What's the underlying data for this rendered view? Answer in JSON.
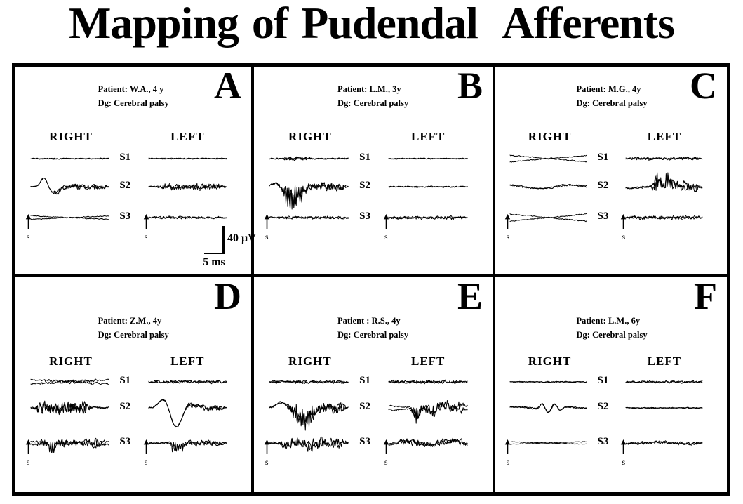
{
  "title": "Mapping of Pudendal  Afferents",
  "columns": {
    "right": "RIGHT",
    "left": "LEFT"
  },
  "segments": [
    "S1",
    "S2",
    "S3"
  ],
  "stim": {
    "label": "s"
  },
  "scale_bar": {
    "voltage": "40 µV",
    "time": "5 ms"
  },
  "panels": [
    {
      "id": "A",
      "patient": "Patient: W.A., 4 y",
      "diagnosis": "Dg: Cerebral palsy",
      "traces": {
        "right": [
          {
            "base": 0.7,
            "seed": 1
          },
          {
            "base": 0.7,
            "seed": 2,
            "events": [
              {
                "pos": 0.17,
                "w": 0.06,
                "amp": 13
              },
              {
                "pos": 0.3,
                "w": 0.09,
                "amp": -9
              }
            ],
            "noise": {
              "amp": 3.5,
              "from": 0.25,
              "to": 1
            }
          },
          {
            "base": 0.5,
            "seed": 3,
            "sep": 2.5
          }
        ],
        "left": [
          {
            "base": 0.7,
            "seed": 4
          },
          {
            "base": 0.8,
            "seed": 5,
            "noise": {
              "amp": 4.5,
              "from": 0.12,
              "to": 1
            }
          },
          {
            "base": 0.8,
            "seed": 6,
            "noise": {
              "amp": 1.2,
              "from": 0,
              "to": 1
            }
          }
        ]
      }
    },
    {
      "id": "B",
      "patient": "Patient: L.M., 3y",
      "diagnosis": "Dg: Cerebral palsy",
      "traces": {
        "right": [
          {
            "base": 0.8,
            "seed": 7,
            "noise": {
              "amp": 2.2,
              "from": 0.15,
              "to": 0.55
            }
          },
          {
            "base": 0.9,
            "seed": 8,
            "events": [
              {
                "pos": 0.08,
                "w": 0.07,
                "amp": 6
              },
              {
                "pos": 0.3,
                "w": 0.13,
                "amp": -27,
                "spiky": true
              }
            ],
            "noise": {
              "amp": 5.5,
              "from": 0.15,
              "to": 1
            }
          },
          {
            "base": 0.9,
            "seed": 9,
            "noise": {
              "amp": 1.4,
              "from": 0,
              "to": 1
            }
          }
        ],
        "left": [
          {
            "base": 0.6,
            "seed": 10
          },
          {
            "base": 0.7,
            "seed": 11
          },
          {
            "base": 0.9,
            "seed": 12,
            "noise": {
              "amp": 1.8,
              "from": 0,
              "to": 1
            }
          }
        ]
      }
    },
    {
      "id": "C",
      "patient": "Patient: M.G.,  4y",
      "diagnosis": "Dg: Cerebral palsy",
      "traces": {
        "right": [
          {
            "base": 0.6,
            "seed": 13,
            "sep": 4.5
          },
          {
            "base": 0.8,
            "seed": 14,
            "slow": 2.5,
            "slowf": 1.2
          },
          {
            "base": 0.6,
            "seed": 15,
            "sep": 5
          }
        ],
        "left": [
          {
            "base": 0.9,
            "seed": 16,
            "noise": {
              "amp": 1.5,
              "from": 0,
              "to": 1
            }
          },
          {
            "base": 0.9,
            "seed": 17,
            "events": [
              {
                "pos": 0.42,
                "w": 0.05,
                "amp": 15,
                "spiky": true
              },
              {
                "pos": 0.55,
                "w": 0.045,
                "amp": 17,
                "spiky": true
              },
              {
                "pos": 0.49,
                "w": 0.03,
                "amp": -5
              }
            ],
            "noise": {
              "amp": 7,
              "from": 0.3,
              "to": 1
            },
            "slow": 2,
            "slowf": 0.8
          },
          {
            "base": 0.9,
            "seed": 18,
            "noise": {
              "amp": 2.2,
              "from": 0,
              "to": 1
            }
          }
        ]
      }
    },
    {
      "id": "D",
      "patient": "Patient: Z.M., 4y",
      "diagnosis": "Dg: Cerebral palsy",
      "traces": {
        "right": [
          {
            "base": 0.8,
            "seed": 19,
            "sep": 3,
            "noise": {
              "amp": 1.8,
              "from": 0.1,
              "to": 0.9
            }
          },
          {
            "base": 1.2,
            "seed": 20,
            "noise": {
              "amp": 9,
              "from": 0.03,
              "to": 0.8
            }
          },
          {
            "base": 1.1,
            "seed": 21,
            "events": [
              {
                "pos": 0.27,
                "w": 0.04,
                "amp": -13,
                "spiky": true
              }
            ],
            "noise": {
              "amp": 5,
              "from": 0.05,
              "to": 1
            },
            "sep": 2
          }
        ],
        "left": [
          {
            "base": 0.9,
            "seed": 22,
            "noise": {
              "amp": 1.8,
              "from": 0,
              "to": 1
            }
          },
          {
            "base": 0.9,
            "seed": 23,
            "events": [
              {
                "pos": 0.2,
                "w": 0.09,
                "amp": 14
              },
              {
                "pos": 0.35,
                "w": 0.1,
                "amp": -28
              },
              {
                "pos": 0.52,
                "w": 0.07,
                "amp": 7
              }
            ],
            "noise": {
              "amp": 4,
              "from": 0.45,
              "to": 1
            }
          },
          {
            "base": 0.9,
            "seed": 24,
            "events": [
              {
                "pos": 0.33,
                "w": 0.05,
                "amp": -11,
                "spiky": true
              },
              {
                "pos": 0.42,
                "w": 0.04,
                "amp": -8,
                "spiky": true
              }
            ],
            "noise": {
              "amp": 3.5,
              "from": 0.2,
              "to": 1
            }
          }
        ]
      }
    },
    {
      "id": "E",
      "patient": "Patient : R.S., 4y",
      "diagnosis": "Dg: Cerebral palsy",
      "traces": {
        "right": [
          {
            "base": 0.9,
            "seed": 25,
            "noise": {
              "amp": 1.8,
              "from": 0,
              "to": 1
            }
          },
          {
            "base": 1,
            "seed": 26,
            "events": [
              {
                "pos": 0.15,
                "w": 0.09,
                "amp": 8
              },
              {
                "pos": 0.44,
                "w": 0.13,
                "amp": -25,
                "spiky": true
              }
            ],
            "noise": {
              "amp": 6.5,
              "from": 0.2,
              "to": 1
            }
          },
          {
            "base": 1.2,
            "seed": 27,
            "events": [
              {
                "pos": 0.5,
                "w": 0.1,
                "amp": -6,
                "spiky": true
              }
            ],
            "noise": {
              "amp": 7,
              "from": 0.1,
              "to": 1
            }
          }
        ],
        "left": [
          {
            "base": 1,
            "seed": 28,
            "noise": {
              "amp": 2.2,
              "from": 0,
              "to": 1
            }
          },
          {
            "base": 1,
            "seed": 29,
            "sep": 3,
            "events": [
              {
                "pos": 0.35,
                "w": 0.06,
                "amp": -11,
                "spiky": true
              },
              {
                "pos": 0.55,
                "w": 0.05,
                "amp": -9,
                "spiky": true
              },
              {
                "pos": 0.7,
                "w": 0.05,
                "amp": 6
              }
            ],
            "noise": {
              "amp": 6.5,
              "from": 0.25,
              "to": 1
            }
          },
          {
            "base": 1,
            "seed": 30,
            "noise": {
              "amp": 4,
              "from": 0.1,
              "to": 1
            },
            "slow": 2.5,
            "slowf": 1.8
          }
        ]
      }
    },
    {
      "id": "F",
      "patient": "Patient: L.M., 6y",
      "diagnosis": "Dg: Cerebral palsy",
      "traces": {
        "right": [
          {
            "base": 0.6,
            "seed": 31
          },
          {
            "base": 0.8,
            "seed": 32,
            "events": [
              {
                "pos": 0.42,
                "w": 0.04,
                "amp": 7
              },
              {
                "pos": 0.5,
                "w": 0.04,
                "amp": -6
              },
              {
                "pos": 0.58,
                "w": 0.035,
                "amp": 5
              },
              {
                "pos": 0.66,
                "w": 0.035,
                "amp": -4
              }
            ],
            "slow": 1.2,
            "slowf": 1.5
          },
          {
            "base": 0.4,
            "seed": 33,
            "sep": 1.8
          }
        ],
        "left": [
          {
            "base": 0.8,
            "seed": 34,
            "noise": {
              "amp": 1.4,
              "from": 0,
              "to": 1
            }
          },
          {
            "base": 0.6,
            "seed": 35
          },
          {
            "base": 0.9,
            "seed": 36,
            "noise": {
              "amp": 1.6,
              "from": 0,
              "to": 1
            },
            "slow": 1,
            "slowf": 1.2
          }
        ]
      }
    }
  ]
}
